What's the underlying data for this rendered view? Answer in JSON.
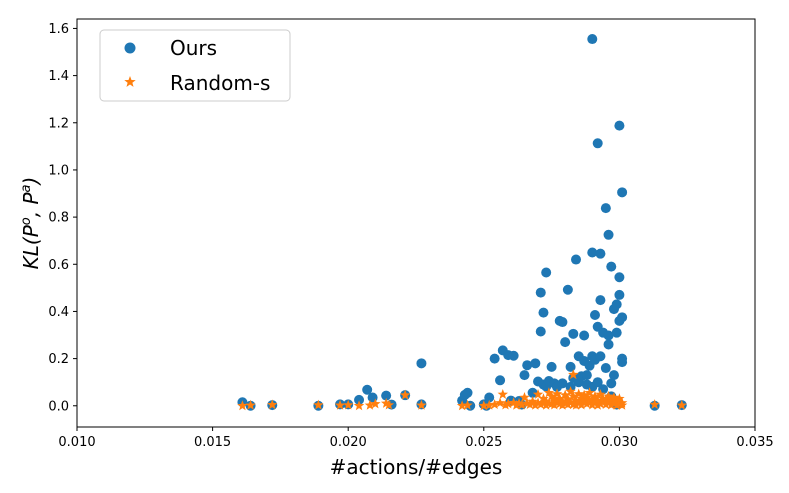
{
  "chart_data": {
    "type": "scatter",
    "xlabel": "#actions/#edges",
    "ylabel": "KL(Pᵒ, Pᵃ)",
    "ylabel_parts": {
      "main": "KL(P",
      "sup1": "o",
      "mid": ", P",
      "sup2": "a",
      "end": ")"
    },
    "xlim": [
      0.01,
      0.035
    ],
    "ylim": [
      -0.09,
      1.64
    ],
    "xticks": [
      0.01,
      0.015,
      0.02,
      0.025,
      0.03,
      0.035
    ],
    "xtick_labels": [
      "0.010",
      "0.015",
      "0.020",
      "0.025",
      "0.030",
      "0.035"
    ],
    "yticks": [
      0.0,
      0.2,
      0.4,
      0.6,
      0.8,
      1.0,
      1.2,
      1.4,
      1.6
    ],
    "ytick_labels": [
      "0.0",
      "0.2",
      "0.4",
      "0.6",
      "0.8",
      "1.0",
      "1.2",
      "1.4",
      "1.6"
    ],
    "grid": false,
    "legend_position": "top-left",
    "series": [
      {
        "name": "Ours",
        "marker": "circle",
        "color": "#1f77b4",
        "points": [
          [
            0.0161,
            0.015
          ],
          [
            0.0164,
            0.0
          ],
          [
            0.0172,
            0.003
          ],
          [
            0.0189,
            0.0
          ],
          [
            0.0197,
            0.006
          ],
          [
            0.02,
            0.006
          ],
          [
            0.0204,
            0.025
          ],
          [
            0.0207,
            0.068
          ],
          [
            0.0209,
            0.035
          ],
          [
            0.0214,
            0.043
          ],
          [
            0.0216,
            0.005
          ],
          [
            0.0221,
            0.045
          ],
          [
            0.0227,
            0.006
          ],
          [
            0.0227,
            0.18
          ],
          [
            0.0242,
            0.022
          ],
          [
            0.0243,
            0.046
          ],
          [
            0.0244,
            0.055
          ],
          [
            0.0245,
            0.0
          ],
          [
            0.025,
            0.006
          ],
          [
            0.0251,
            0.0
          ],
          [
            0.0252,
            0.035
          ],
          [
            0.0254,
            0.2
          ],
          [
            0.0256,
            0.108
          ],
          [
            0.0257,
            0.235
          ],
          [
            0.0259,
            0.215
          ],
          [
            0.026,
            0.022
          ],
          [
            0.0261,
            0.212
          ],
          [
            0.0263,
            0.02
          ],
          [
            0.0264,
            0.005
          ],
          [
            0.0265,
            0.13
          ],
          [
            0.0266,
            0.172
          ],
          [
            0.0268,
            0.055
          ],
          [
            0.0269,
            0.18
          ],
          [
            0.027,
            0.103
          ],
          [
            0.0271,
            0.315
          ],
          [
            0.0271,
            0.48
          ],
          [
            0.0272,
            0.09
          ],
          [
            0.0272,
            0.395
          ],
          [
            0.0273,
            0.565
          ],
          [
            0.0273,
            0.082
          ],
          [
            0.0274,
            0.105
          ],
          [
            0.0275,
            0.165
          ],
          [
            0.0276,
            0.095
          ],
          [
            0.0277,
            0.08
          ],
          [
            0.0278,
            0.36
          ],
          [
            0.0279,
            0.355
          ],
          [
            0.0279,
            0.095
          ],
          [
            0.028,
            0.27
          ],
          [
            0.0281,
            0.492
          ],
          [
            0.0282,
            0.08
          ],
          [
            0.0282,
            0.165
          ],
          [
            0.0283,
            0.305
          ],
          [
            0.0283,
            0.118
          ],
          [
            0.0284,
            0.62
          ],
          [
            0.0285,
            0.21
          ],
          [
            0.0285,
            0.1
          ],
          [
            0.0286,
            0.125
          ],
          [
            0.0287,
            0.19
          ],
          [
            0.0287,
            0.298
          ],
          [
            0.0288,
            0.09
          ],
          [
            0.0288,
            0.13
          ],
          [
            0.0289,
            0.17
          ],
          [
            0.029,
            0.21
          ],
          [
            0.029,
            0.08
          ],
          [
            0.029,
            0.65
          ],
          [
            0.029,
            1.555
          ],
          [
            0.0291,
            0.385
          ],
          [
            0.0291,
            0.195
          ],
          [
            0.0292,
            1.113
          ],
          [
            0.0292,
            0.335
          ],
          [
            0.0292,
            0.1
          ],
          [
            0.0293,
            0.645
          ],
          [
            0.0293,
            0.448
          ],
          [
            0.0293,
            0.21
          ],
          [
            0.0294,
            0.07
          ],
          [
            0.0294,
            0.31
          ],
          [
            0.0295,
            0.838
          ],
          [
            0.0295,
            0.16
          ],
          [
            0.0296,
            0.725
          ],
          [
            0.0296,
            0.298
          ],
          [
            0.0296,
            0.26
          ],
          [
            0.0297,
            0.59
          ],
          [
            0.0297,
            0.095
          ],
          [
            0.0297,
            0.04
          ],
          [
            0.0298,
            0.41
          ],
          [
            0.0298,
            0.13
          ],
          [
            0.0299,
            0.43
          ],
          [
            0.0299,
            0.31
          ],
          [
            0.0299,
            0.005
          ],
          [
            0.03,
            0.47
          ],
          [
            0.03,
            1.188
          ],
          [
            0.03,
            0.545
          ],
          [
            0.03,
            0.36
          ],
          [
            0.0301,
            0.905
          ],
          [
            0.0301,
            0.2
          ],
          [
            0.0301,
            0.185
          ],
          [
            0.0301,
            0.375
          ],
          [
            0.0313,
            0.0
          ],
          [
            0.0323,
            0.003
          ]
        ]
      },
      {
        "name": "Random-s",
        "marker": "star",
        "color": "#ff7f0e",
        "points": [
          [
            0.0161,
            0.0
          ],
          [
            0.0164,
            0.002
          ],
          [
            0.0172,
            0.004
          ],
          [
            0.0189,
            0.003
          ],
          [
            0.0197,
            0.002
          ],
          [
            0.02,
            0.003
          ],
          [
            0.0204,
            0.0
          ],
          [
            0.0208,
            0.002
          ],
          [
            0.021,
            0.008
          ],
          [
            0.0214,
            0.01
          ],
          [
            0.0215,
            0.003
          ],
          [
            0.0221,
            0.045
          ],
          [
            0.0227,
            0.002
          ],
          [
            0.0242,
            0.0
          ],
          [
            0.0244,
            0.002
          ],
          [
            0.025,
            0.0
          ],
          [
            0.0252,
            0.002
          ],
          [
            0.0254,
            0.005
          ],
          [
            0.0256,
            0.012
          ],
          [
            0.0257,
            0.048
          ],
          [
            0.0258,
            0.003
          ],
          [
            0.0259,
            0.008
          ],
          [
            0.0261,
            0.013
          ],
          [
            0.0262,
            0.002
          ],
          [
            0.0263,
            0.01
          ],
          [
            0.0264,
            0.003
          ],
          [
            0.0265,
            0.035
          ],
          [
            0.0266,
            0.01
          ],
          [
            0.0267,
            0.005
          ],
          [
            0.0268,
            0.018
          ],
          [
            0.0269,
            0.002
          ],
          [
            0.027,
            0.012
          ],
          [
            0.027,
            0.048
          ],
          [
            0.0271,
            0.005
          ],
          [
            0.0272,
            0.012
          ],
          [
            0.0272,
            0.03
          ],
          [
            0.0273,
            0.002
          ],
          [
            0.0273,
            0.018
          ],
          [
            0.0274,
            0.01
          ],
          [
            0.0274,
            0.055
          ],
          [
            0.0275,
            0.008
          ],
          [
            0.0275,
            0.04
          ],
          [
            0.0276,
            0.025
          ],
          [
            0.0276,
            0.003
          ],
          [
            0.0277,
            0.015
          ],
          [
            0.0277,
            0.05
          ],
          [
            0.0278,
            0.008
          ],
          [
            0.0278,
            0.03
          ],
          [
            0.0279,
            0.002
          ],
          [
            0.0279,
            0.02
          ],
          [
            0.028,
            0.045
          ],
          [
            0.028,
            0.01
          ],
          [
            0.0281,
            0.028
          ],
          [
            0.0281,
            0.005
          ],
          [
            0.0282,
            0.015
          ],
          [
            0.0282,
            0.06
          ],
          [
            0.0283,
            0.04
          ],
          [
            0.0283,
            0.132
          ],
          [
            0.0283,
            0.005
          ],
          [
            0.0284,
            0.022
          ],
          [
            0.0284,
            0.002
          ],
          [
            0.0285,
            0.05
          ],
          [
            0.0285,
            0.012
          ],
          [
            0.0286,
            0.03
          ],
          [
            0.0286,
            0.003
          ],
          [
            0.0287,
            0.02
          ],
          [
            0.0287,
            0.045
          ],
          [
            0.0288,
            0.008
          ],
          [
            0.0288,
            0.035
          ],
          [
            0.0289,
            0.015
          ],
          [
            0.0289,
            0.055
          ],
          [
            0.029,
            0.003
          ],
          [
            0.029,
            0.028
          ],
          [
            0.0291,
            0.012
          ],
          [
            0.0291,
            0.04
          ],
          [
            0.0292,
            0.002
          ],
          [
            0.0292,
            0.022
          ],
          [
            0.0293,
            0.008
          ],
          [
            0.0293,
            0.048
          ],
          [
            0.0294,
            0.015
          ],
          [
            0.0294,
            0.03
          ],
          [
            0.0295,
            0.005
          ],
          [
            0.0295,
            0.025
          ],
          [
            0.0296,
            0.012
          ],
          [
            0.0296,
            0.04
          ],
          [
            0.0297,
            0.003
          ],
          [
            0.0297,
            0.02
          ],
          [
            0.0298,
            0.01
          ],
          [
            0.0298,
            0.035
          ],
          [
            0.0299,
            0.002
          ],
          [
            0.0299,
            0.018
          ],
          [
            0.03,
            0.008
          ],
          [
            0.03,
            0.03
          ],
          [
            0.0301,
            0.012
          ],
          [
            0.0301,
            0.002
          ],
          [
            0.0313,
            0.005
          ],
          [
            0.0323,
            0.002
          ]
        ]
      }
    ]
  }
}
